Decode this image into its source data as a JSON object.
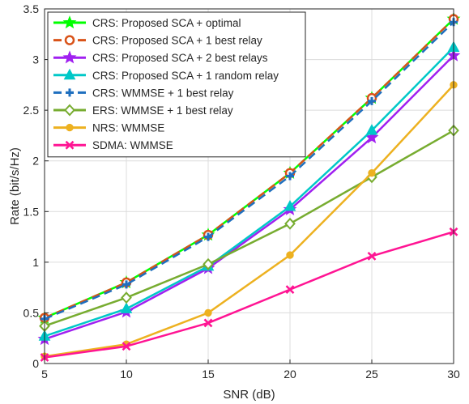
{
  "chart_data": {
    "type": "line",
    "xlabel": "SNR (dB)",
    "ylabel": "Rate (bit/s/Hz)",
    "x": [
      5,
      10,
      15,
      20,
      25,
      30
    ],
    "xlim": [
      5,
      30
    ],
    "ylim": [
      0,
      3.5
    ],
    "xticks": [
      "5",
      "10",
      "15",
      "20",
      "25",
      "30"
    ],
    "yticks": [
      "0",
      "0.5",
      "1",
      "1.5",
      "2",
      "2.5",
      "3",
      "3.5"
    ],
    "grid": true,
    "legend_position": "top-left",
    "series": [
      {
        "name": "CRS: Proposed SCA + optimal",
        "values": [
          0.45,
          0.8,
          1.27,
          1.88,
          2.62,
          3.4
        ],
        "color": "#00ff00",
        "marker": "star",
        "dash": "solid"
      },
      {
        "name": "CRS: Proposed SCA + 1 best relay",
        "values": [
          0.45,
          0.8,
          1.27,
          1.88,
          2.62,
          3.4
        ],
        "color": "#d95319",
        "marker": "circle",
        "dash": "dashed"
      },
      {
        "name": "CRS: Proposed SCA + 2 best relays",
        "values": [
          0.24,
          0.51,
          0.94,
          1.52,
          2.23,
          3.04
        ],
        "color": "#a020f0",
        "marker": "star",
        "dash": "solid"
      },
      {
        "name": "CRS: Proposed SCA + 1 random relay",
        "values": [
          0.27,
          0.54,
          0.96,
          1.55,
          2.3,
          3.12
        ],
        "color": "#00c8c8",
        "marker": "triangle",
        "dash": "solid"
      },
      {
        "name": "CRS: WMMSE + 1 best relay",
        "values": [
          0.44,
          0.78,
          1.25,
          1.85,
          2.59,
          3.37
        ],
        "color": "#1f6fbf",
        "marker": "plus",
        "dash": "dashed"
      },
      {
        "name": "ERS: WMMSE + 1 best relay",
        "values": [
          0.37,
          0.65,
          0.98,
          1.38,
          1.84,
          2.3
        ],
        "color": "#77ac30",
        "marker": "diamond",
        "dash": "solid"
      },
      {
        "name": "NRS: WMMSE",
        "values": [
          0.07,
          0.19,
          0.5,
          1.07,
          1.88,
          2.75
        ],
        "color": "#edb120",
        "marker": "dot",
        "dash": "solid"
      },
      {
        "name": "SDMA: WMMSE",
        "values": [
          0.06,
          0.17,
          0.4,
          0.73,
          1.06,
          1.3
        ],
        "color": "#ff1493",
        "marker": "x",
        "dash": "solid"
      }
    ]
  }
}
